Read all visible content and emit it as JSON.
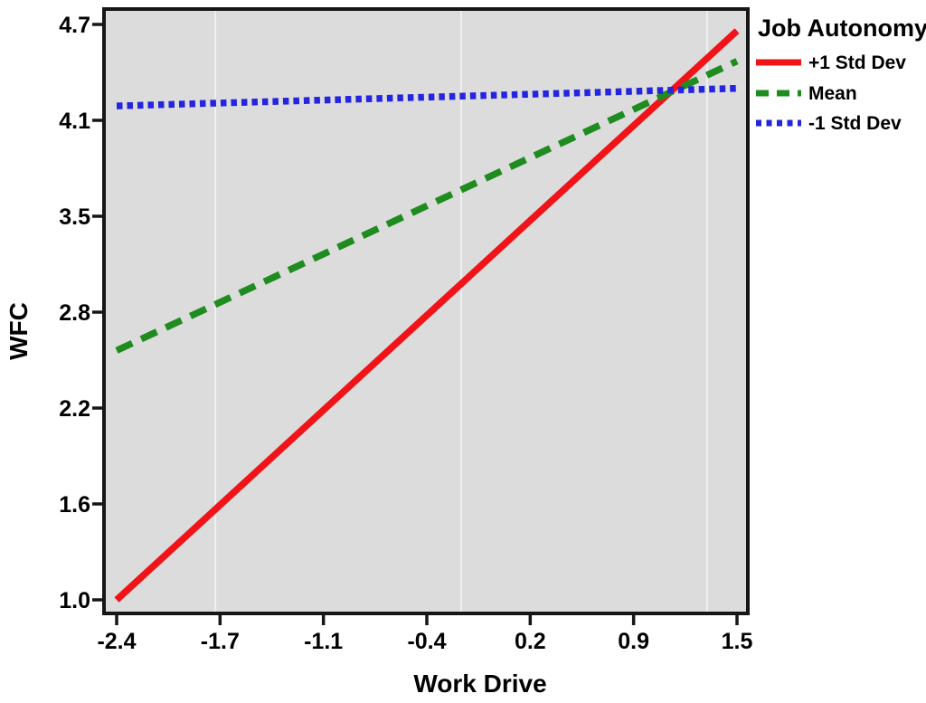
{
  "chart_data": {
    "type": "line",
    "title": "",
    "xlabel": "Work Drive",
    "ylabel": "WFC",
    "x_tick_values": [
      -2.4,
      -1.7,
      -1.1,
      -0.4,
      0.2,
      0.9,
      1.5
    ],
    "x_tick_labels": [
      "-2.4",
      "-1.7",
      "-1.1",
      "-0.4",
      "0.2",
      "0.9",
      "1.5"
    ],
    "y_tick_values": [
      1.0,
      1.6,
      2.2,
      2.8,
      3.5,
      4.1,
      4.7
    ],
    "y_tick_labels": [
      "1.0",
      "1.6",
      "2.2",
      "2.8",
      "3.5",
      "4.1",
      "4.7"
    ],
    "xlim": [
      -2.4,
      1.5
    ],
    "ylim": [
      1.0,
      4.7
    ],
    "grid": "off (faint vertical banding only)",
    "plot_background": "#dcdcdc",
    "axis_color": "#161616",
    "legend": {
      "title": "Job Autonomy",
      "position": "outside-top-right",
      "entries": [
        {
          "label": "+1 Std Dev",
          "color": "#f01318",
          "style": "solid"
        },
        {
          "label": "Mean",
          "color": "#1f8c1f",
          "style": "dashed"
        },
        {
          "label": "-1 Std Dev",
          "color": "#2525e0",
          "style": "dotted"
        }
      ]
    },
    "series": [
      {
        "name": "+1 Std Dev",
        "color": "#f01318",
        "style": "solid",
        "points": [
          {
            "x": -2.4,
            "y": 1.0
          },
          {
            "x": 1.5,
            "y": 4.66
          }
        ]
      },
      {
        "name": "Mean",
        "color": "#1f8c1f",
        "style": "dashed",
        "points": [
          {
            "x": -2.4,
            "y": 2.56
          },
          {
            "x": 1.5,
            "y": 4.47
          }
        ]
      },
      {
        "name": "-1 Std Dev",
        "color": "#2525e0",
        "style": "dotted",
        "points": [
          {
            "x": -2.4,
            "y": 4.19
          },
          {
            "x": 1.5,
            "y": 4.3
          }
        ]
      }
    ]
  }
}
